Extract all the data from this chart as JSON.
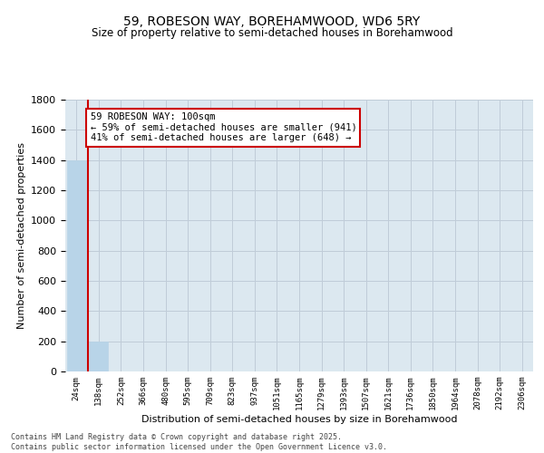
{
  "title": "59, ROBESON WAY, BOREHAMWOOD, WD6 5RY",
  "subtitle": "Size of property relative to semi-detached houses in Borehamwood",
  "xlabel": "Distribution of semi-detached houses by size in Borehamwood",
  "ylabel": "Number of semi-detached properties",
  "bar_labels": [
    "24sqm",
    "138sqm",
    "252sqm",
    "366sqm",
    "480sqm",
    "595sqm",
    "709sqm",
    "823sqm",
    "937sqm",
    "1051sqm",
    "1165sqm",
    "1279sqm",
    "1393sqm",
    "1507sqm",
    "1621sqm",
    "1736sqm",
    "1850sqm",
    "1964sqm",
    "2078sqm",
    "2192sqm",
    "2306sqm"
  ],
  "bar_values": [
    1400,
    200,
    0,
    0,
    0,
    0,
    0,
    0,
    0,
    0,
    0,
    0,
    0,
    0,
    0,
    0,
    0,
    0,
    0,
    0,
    0
  ],
  "bar_color": "#b8d4e8",
  "grid_color": "#c0ccd8",
  "background_color": "#dce8f0",
  "ylim": [
    0,
    1800
  ],
  "property_size": "100sqm",
  "annotation_title": "59 ROBESON WAY: 100sqm",
  "annotation_line1": "← 59% of semi-detached houses are smaller (941)",
  "annotation_line2": "41% of semi-detached houses are larger (648) →",
  "annotation_box_color": "#cc0000",
  "footer_line1": "Contains HM Land Registry data © Crown copyright and database right 2025.",
  "footer_line2": "Contains public sector information licensed under the Open Government Licence v3.0."
}
